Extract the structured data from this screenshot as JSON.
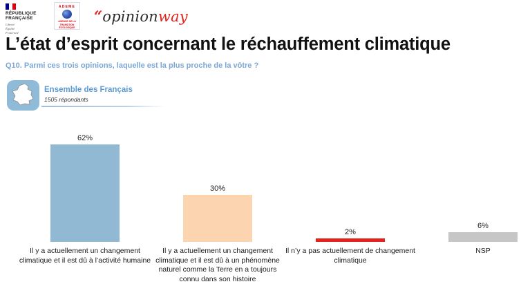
{
  "header": {
    "logo_republique": {
      "name_line1": "RÉPUBLIQUE",
      "name_line2": "FRANÇAISE",
      "motto_line1": "Liberté",
      "motto_line2": "Égalité",
      "motto_line3": "Fraternité"
    },
    "logo_ademe": {
      "name": "ADEME",
      "tagline": "AGENCE DE LA TRANSITION ÉCOLOGIQUE"
    },
    "logo_opinionway": {
      "quote": "“",
      "part1": "opinion",
      "part2": "way"
    },
    "title": "L’état d’esprit concernant le réchauffement climatique",
    "question": "Q10. Parmi ces trois opinions, laquelle est la plus proche de la vôtre ?"
  },
  "audience": {
    "label": "Ensemble des Français",
    "sample_size": "1505 répondants"
  },
  "chart_data": {
    "type": "bar",
    "categories": [
      "Il y a actuellement un changement climatique et il est dû à l’activité humaine",
      "Il y a actuellement un changement climatique et il est dû à un phénomène naturel comme la Terre en a toujours connu dans son histoire",
      "Il n’y a pas actuellement de changement climatique",
      "NSP"
    ],
    "values": [
      62,
      30,
      2,
      6
    ],
    "value_labels": [
      "62%",
      "30%",
      "2%",
      "6%"
    ],
    "bar_colors": [
      "#92B9D3",
      "#FCD4B0",
      "#E3231C",
      "#C6C6C6"
    ],
    "unit": "%",
    "ylim": [
      0,
      70
    ],
    "grid": false,
    "legend": false,
    "title": "",
    "xlabel": "",
    "ylabel": ""
  },
  "colors": {
    "accent_blue": "#5B9BD5",
    "question_blue": "#7CA6D5",
    "brand_red": "#E3231C",
    "icon_tile_blue": "#90BBD8"
  }
}
